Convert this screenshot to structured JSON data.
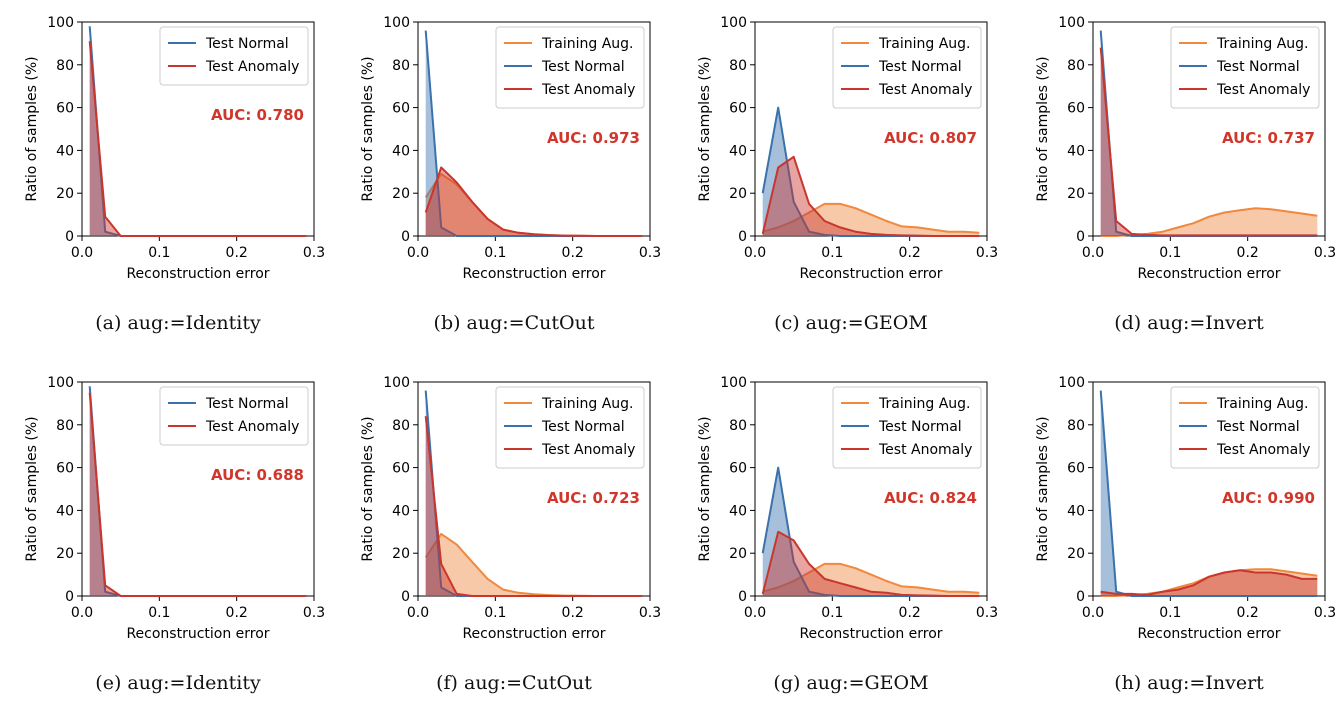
{
  "chart_data": [
    {
      "type": "area",
      "caption": "(a) aug:=Identity",
      "xlabel": "Reconstruction error",
      "ylabel": "Ratio of samples (%)",
      "xlim": [
        0,
        0.3
      ],
      "ylim": [
        0,
        100
      ],
      "xticks": [
        "0.0",
        "0.1",
        "0.2",
        "0.3"
      ],
      "yticks": [
        "0",
        "20",
        "40",
        "60",
        "80",
        "100"
      ],
      "annotation": "AUC: 0.780",
      "x": [
        0.01,
        0.03,
        0.05,
        0.07,
        0.09,
        0.11,
        0.13,
        0.15,
        0.17,
        0.19,
        0.21,
        0.23,
        0.25,
        0.27,
        0.29
      ],
      "series": [
        {
          "name": "Test Normal",
          "color": "#3a72ad",
          "values": [
            98,
            2,
            0,
            0,
            0,
            0,
            0,
            0,
            0,
            0,
            0,
            0,
            0,
            0,
            0
          ]
        },
        {
          "name": "Test Anomaly",
          "color": "#c9362e",
          "values": [
            91,
            9,
            0,
            0,
            0,
            0,
            0,
            0,
            0,
            0,
            0,
            0,
            0,
            0,
            0
          ]
        }
      ]
    },
    {
      "type": "area",
      "caption": "(b) aug:=CutOut",
      "xlabel": "Reconstruction error",
      "ylabel": "Ratio of samples (%)",
      "xlim": [
        0,
        0.3
      ],
      "ylim": [
        0,
        100
      ],
      "xticks": [
        "0.0",
        "0.1",
        "0.2",
        "0.3"
      ],
      "yticks": [
        "0",
        "20",
        "40",
        "60",
        "80",
        "100"
      ],
      "annotation": "AUC: 0.973",
      "x": [
        0.01,
        0.03,
        0.05,
        0.07,
        0.09,
        0.11,
        0.13,
        0.15,
        0.17,
        0.19,
        0.21,
        0.23,
        0.25,
        0.27,
        0.29
      ],
      "series": [
        {
          "name": "Training Aug.",
          "color": "#f0883e",
          "values": [
            18,
            29,
            24,
            16,
            8,
            3,
            1.5,
            0.8,
            0.4,
            0.2,
            0.1,
            0,
            0,
            0,
            0
          ]
        },
        {
          "name": "Test Normal",
          "color": "#3a72ad",
          "values": [
            96,
            4,
            0,
            0,
            0,
            0,
            0,
            0,
            0,
            0,
            0,
            0,
            0,
            0,
            0
          ]
        },
        {
          "name": "Test Anomaly",
          "color": "#c9362e",
          "values": [
            11,
            32,
            25,
            16,
            8,
            3,
            1.5,
            0.8,
            0.4,
            0.2,
            0.1,
            0,
            0,
            0,
            0
          ]
        }
      ]
    },
    {
      "type": "area",
      "caption": "(c) aug:=GEOM",
      "xlabel": "Reconstruction error",
      "ylabel": "Ratio of samples (%)",
      "xlim": [
        0,
        0.3
      ],
      "ylim": [
        0,
        100
      ],
      "xticks": [
        "0.0",
        "0.1",
        "0.2",
        "0.3"
      ],
      "yticks": [
        "0",
        "20",
        "40",
        "60",
        "80",
        "100"
      ],
      "annotation": "AUC: 0.807",
      "x": [
        0.01,
        0.03,
        0.05,
        0.07,
        0.09,
        0.11,
        0.13,
        0.15,
        0.17,
        0.19,
        0.21,
        0.23,
        0.25,
        0.27,
        0.29
      ],
      "series": [
        {
          "name": "Training Aug.",
          "color": "#f0883e",
          "values": [
            2,
            4,
            7,
            11,
            15,
            15,
            13,
            10,
            7,
            4.5,
            4,
            3,
            2,
            2,
            1.5
          ]
        },
        {
          "name": "Test Normal",
          "color": "#3a72ad",
          "values": [
            20,
            60,
            16,
            2,
            0.5,
            0,
            0,
            0,
            0,
            0,
            0,
            0,
            0,
            0,
            0
          ]
        },
        {
          "name": "Test Anomaly",
          "color": "#c9362e",
          "values": [
            1,
            32,
            37,
            15,
            7,
            4,
            2,
            1,
            0.5,
            0.3,
            0.2,
            0,
            0,
            0,
            0
          ]
        }
      ]
    },
    {
      "type": "area",
      "caption": "(d) aug:=Invert",
      "xlabel": "Reconstruction error",
      "ylabel": "Ratio of samples (%)",
      "xlim": [
        0,
        0.3
      ],
      "ylim": [
        0,
        100
      ],
      "xticks": [
        "0.0",
        "0.1",
        "0.2",
        "0.3"
      ],
      "yticks": [
        "0",
        "20",
        "40",
        "60",
        "80",
        "100"
      ],
      "annotation": "AUC: 0.737",
      "x": [
        0.01,
        0.03,
        0.05,
        0.07,
        0.09,
        0.11,
        0.13,
        0.15,
        0.17,
        0.19,
        0.21,
        0.23,
        0.25,
        0.27,
        0.29
      ],
      "series": [
        {
          "name": "Training Aug.",
          "color": "#f0883e",
          "values": [
            0,
            0,
            0.5,
            1,
            2,
            4,
            6,
            9,
            11,
            12,
            13,
            12.5,
            11.5,
            10.5,
            9.5
          ]
        },
        {
          "name": "Test Normal",
          "color": "#3a72ad",
          "values": [
            96,
            2,
            0,
            0,
            0,
            0,
            0,
            0,
            0,
            0,
            0,
            0,
            0,
            0,
            0
          ]
        },
        {
          "name": "Test Anomaly",
          "color": "#c9362e",
          "values": [
            88,
            7,
            1,
            0.5,
            0.3,
            0.3,
            0.3,
            0.3,
            0.3,
            0.3,
            0.3,
            0.3,
            0.3,
            0.3,
            0.3
          ]
        }
      ]
    },
    {
      "type": "area",
      "caption": "(e) aug:=Identity",
      "xlabel": "Reconstruction error",
      "ylabel": "Ratio of samples (%)",
      "xlim": [
        0,
        0.3
      ],
      "ylim": [
        0,
        100
      ],
      "xticks": [
        "0.0",
        "0.1",
        "0.2",
        "0.3"
      ],
      "yticks": [
        "0",
        "20",
        "40",
        "60",
        "80",
        "100"
      ],
      "annotation": "AUC: 0.688",
      "x": [
        0.01,
        0.03,
        0.05,
        0.07,
        0.09,
        0.11,
        0.13,
        0.15,
        0.17,
        0.19,
        0.21,
        0.23,
        0.25,
        0.27,
        0.29
      ],
      "series": [
        {
          "name": "Test Normal",
          "color": "#3a72ad",
          "values": [
            98,
            2,
            0,
            0,
            0,
            0,
            0,
            0,
            0,
            0,
            0,
            0,
            0,
            0,
            0
          ]
        },
        {
          "name": "Test Anomaly",
          "color": "#c9362e",
          "values": [
            95,
            5,
            0,
            0,
            0,
            0,
            0,
            0,
            0,
            0,
            0,
            0,
            0,
            0,
            0
          ]
        }
      ]
    },
    {
      "type": "area",
      "caption": "(f) aug:=CutOut",
      "xlabel": "Reconstruction error",
      "ylabel": "Ratio of samples (%)",
      "xlim": [
        0,
        0.3
      ],
      "ylim": [
        0,
        100
      ],
      "xticks": [
        "0.0",
        "0.1",
        "0.2",
        "0.3"
      ],
      "yticks": [
        "0",
        "20",
        "40",
        "60",
        "80",
        "100"
      ],
      "annotation": "AUC: 0.723",
      "x": [
        0.01,
        0.03,
        0.05,
        0.07,
        0.09,
        0.11,
        0.13,
        0.15,
        0.17,
        0.19,
        0.21,
        0.23,
        0.25,
        0.27,
        0.29
      ],
      "series": [
        {
          "name": "Training Aug.",
          "color": "#f0883e",
          "values": [
            18,
            29,
            24,
            16,
            8,
            3,
            1.5,
            0.8,
            0.4,
            0.2,
            0.1,
            0,
            0,
            0,
            0
          ]
        },
        {
          "name": "Test Normal",
          "color": "#3a72ad",
          "values": [
            96,
            4,
            0,
            0,
            0,
            0,
            0,
            0,
            0,
            0,
            0,
            0,
            0,
            0,
            0
          ]
        },
        {
          "name": "Test Anomaly",
          "color": "#c9362e",
          "values": [
            84,
            15,
            1,
            0,
            0,
            0,
            0,
            0,
            0,
            0,
            0,
            0,
            0,
            0,
            0
          ]
        }
      ]
    },
    {
      "type": "area",
      "caption": "(g) aug:=GEOM",
      "xlabel": "Reconstruction error",
      "ylabel": "Ratio of samples (%)",
      "xlim": [
        0,
        0.3
      ],
      "ylim": [
        0,
        100
      ],
      "xticks": [
        "0.0",
        "0.1",
        "0.2",
        "0.3"
      ],
      "yticks": [
        "0",
        "20",
        "40",
        "60",
        "80",
        "100"
      ],
      "annotation": "AUC: 0.824",
      "x": [
        0.01,
        0.03,
        0.05,
        0.07,
        0.09,
        0.11,
        0.13,
        0.15,
        0.17,
        0.19,
        0.21,
        0.23,
        0.25,
        0.27,
        0.29
      ],
      "series": [
        {
          "name": "Training Aug.",
          "color": "#f0883e",
          "values": [
            2,
            4,
            7,
            11,
            15,
            15,
            13,
            10,
            7,
            4.5,
            4,
            3,
            2,
            2,
            1.5
          ]
        },
        {
          "name": "Test Normal",
          "color": "#3a72ad",
          "values": [
            20,
            60,
            16,
            2,
            0.5,
            0,
            0,
            0,
            0,
            0,
            0,
            0,
            0,
            0,
            0
          ]
        },
        {
          "name": "Test Anomaly",
          "color": "#c9362e",
          "values": [
            1,
            30,
            26,
            15,
            8,
            6,
            4,
            2,
            1.5,
            0.5,
            0.3,
            0.2,
            0,
            0,
            0
          ]
        }
      ]
    },
    {
      "type": "area",
      "caption": "(h) aug:=Invert",
      "xlabel": "Reconstruction error",
      "ylabel": "Ratio of samples (%)",
      "xlim": [
        0,
        0.3
      ],
      "ylim": [
        0,
        100
      ],
      "xticks": [
        "0.0",
        "0.1",
        "0.2",
        "0.3"
      ],
      "yticks": [
        "0",
        "20",
        "40",
        "60",
        "80",
        "100"
      ],
      "annotation": "AUC: 0.990",
      "x": [
        0.01,
        0.03,
        0.05,
        0.07,
        0.09,
        0.11,
        0.13,
        0.15,
        0.17,
        0.19,
        0.21,
        0.23,
        0.25,
        0.27,
        0.29
      ],
      "series": [
        {
          "name": "Training Aug.",
          "color": "#f0883e",
          "values": [
            0,
            0,
            0.5,
            1,
            2,
            4,
            6,
            9,
            11,
            12,
            12.5,
            12.5,
            11.5,
            10.5,
            9.5
          ]
        },
        {
          "name": "Test Normal",
          "color": "#3a72ad",
          "values": [
            96,
            2,
            0,
            0,
            0,
            0,
            0,
            0,
            0,
            0,
            0,
            0,
            0,
            0,
            0
          ]
        },
        {
          "name": "Test Anomaly",
          "color": "#c9362e",
          "values": [
            2,
            1,
            1,
            0.5,
            2,
            3,
            5,
            9,
            11,
            12,
            11,
            11,
            10,
            8,
            8
          ]
        }
      ]
    }
  ]
}
